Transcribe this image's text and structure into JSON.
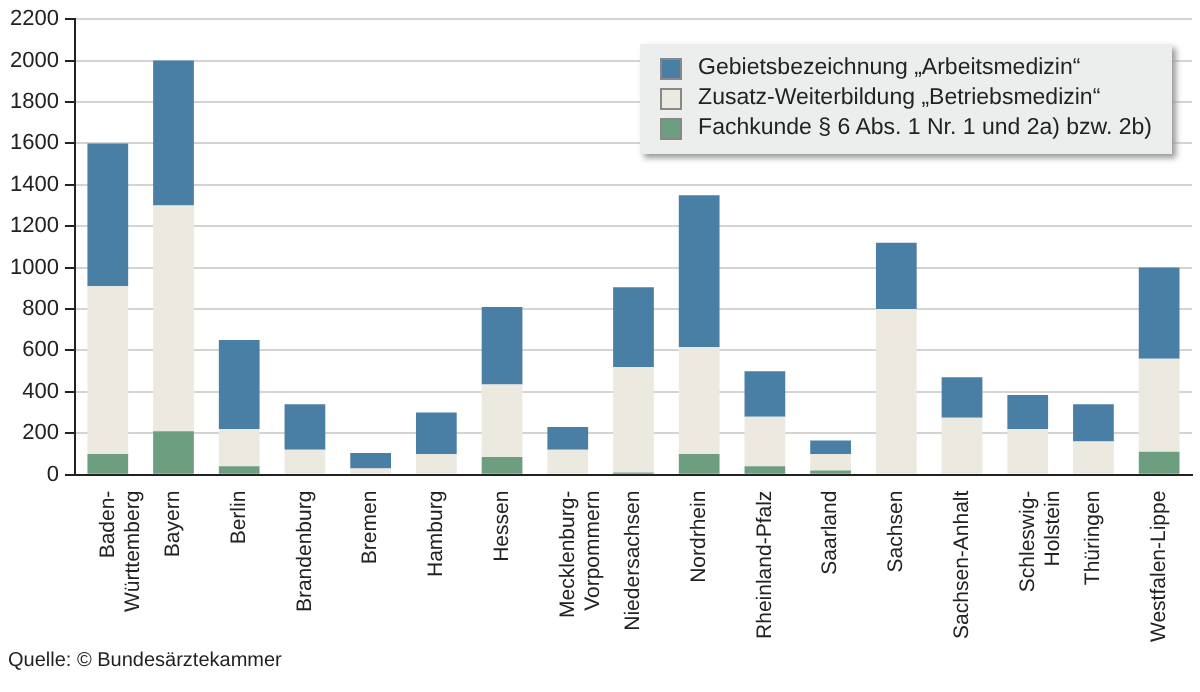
{
  "chart_data": {
    "type": "bar",
    "stacked": true,
    "categories": [
      "Baden-\nWürttemberg",
      "Bayern",
      "Berlin",
      "Brandenburg",
      "Bremen",
      "Hamburg",
      "Hessen",
      "Mecklenburg-\nVorpommern",
      "Niedersachsen",
      "Nordrhein",
      "Rheinland-Pfalz",
      "Saarland",
      "Sachsen",
      "Sachsen-Anhalt",
      "Schleswig-\nHolstein",
      "Thüringen",
      "Westfalen-Lippe"
    ],
    "series": [
      {
        "name": "Fachkunde § 6 Abs. 1 Nr. 1 und 2a) bzw. 2b)",
        "color": "#6e9e80",
        "values": [
          100,
          210,
          40,
          0,
          0,
          0,
          85,
          0,
          10,
          100,
          40,
          20,
          0,
          0,
          0,
          0,
          110
        ]
      },
      {
        "name": "Zusatz-Weiterbildung „Betriebsmedizin“",
        "color": "#ece9e0",
        "values": [
          810,
          1090,
          180,
          120,
          30,
          100,
          350,
          120,
          510,
          515,
          240,
          80,
          800,
          275,
          220,
          160,
          450
        ]
      },
      {
        "name": "Gebietsbezeichnung „Arbeitsmedizin“",
        "color": "#4a7fa5",
        "values": [
          690,
          700,
          430,
          220,
          75,
          200,
          375,
          110,
          385,
          735,
          220,
          65,
          320,
          195,
          165,
          180,
          440
        ]
      }
    ],
    "ylim": [
      0,
      2200
    ],
    "yticks": [
      0,
      200,
      400,
      600,
      800,
      1000,
      1200,
      1400,
      1600,
      1800,
      2000,
      2200
    ],
    "grid": "y",
    "legend": "top right",
    "annotations": [
      "Quelle: © Bundesärztekammer"
    ]
  }
}
